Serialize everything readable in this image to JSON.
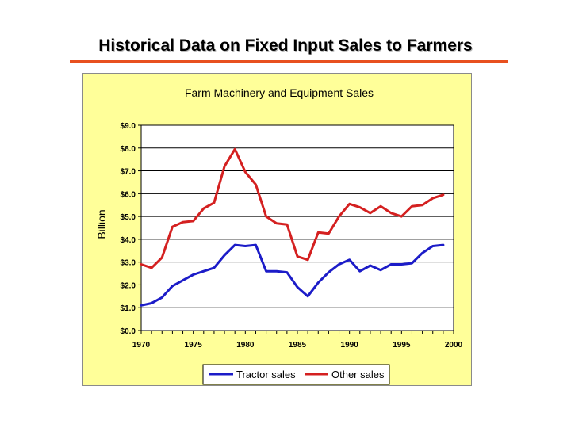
{
  "slide": {
    "title": "Historical Data on Fixed Input Sales to Farmers"
  },
  "colors": {
    "accent_rule": "#e8501f",
    "panel_bg": "#ffff99",
    "tractor": "#1c1cc8",
    "other": "#d42020"
  },
  "chart_data": {
    "type": "line",
    "title": "Farm Machinery and Equipment Sales",
    "ylabel": "Billion",
    "xlabel": "",
    "xlim": [
      1970,
      2000
    ],
    "ylim": [
      0,
      9
    ],
    "x_ticks": [
      "1970",
      "1975",
      "1980",
      "1985",
      "1990",
      "1995",
      "2000"
    ],
    "y_ticks": [
      "$0.0",
      "$1.0",
      "$2.0",
      "$3.0",
      "$4.0",
      "$5.0",
      "$6.0",
      "$7.0",
      "$8.0",
      "$9.0"
    ],
    "grid": "horizontal",
    "legend": "bottom",
    "x": [
      1970,
      1971,
      1972,
      1973,
      1974,
      1975,
      1976,
      1977,
      1978,
      1979,
      1980,
      1981,
      1982,
      1983,
      1984,
      1985,
      1986,
      1987,
      1988,
      1989,
      1990,
      1991,
      1992,
      1993,
      1994,
      1995,
      1996,
      1997,
      1998,
      1999
    ],
    "series": [
      {
        "name": "Tractor sales",
        "color": "#1c1cc8",
        "values": [
          1.1,
          1.2,
          1.45,
          1.95,
          2.2,
          2.45,
          2.6,
          2.75,
          3.3,
          3.75,
          3.7,
          3.75,
          2.6,
          2.6,
          2.55,
          1.9,
          1.5,
          2.1,
          2.55,
          2.9,
          3.1,
          2.6,
          2.85,
          2.65,
          2.9,
          2.9,
          2.95,
          3.4,
          3.7,
          3.75
        ]
      },
      {
        "name": "Other sales",
        "color": "#d42020",
        "values": [
          2.9,
          2.75,
          3.2,
          4.55,
          4.75,
          4.8,
          5.35,
          5.6,
          7.2,
          7.95,
          6.95,
          6.4,
          5.0,
          4.7,
          4.65,
          3.25,
          3.1,
          4.3,
          4.25,
          5.0,
          5.55,
          5.4,
          5.15,
          5.45,
          5.15,
          5.0,
          5.45,
          5.5,
          5.8,
          5.95
        ]
      }
    ]
  }
}
